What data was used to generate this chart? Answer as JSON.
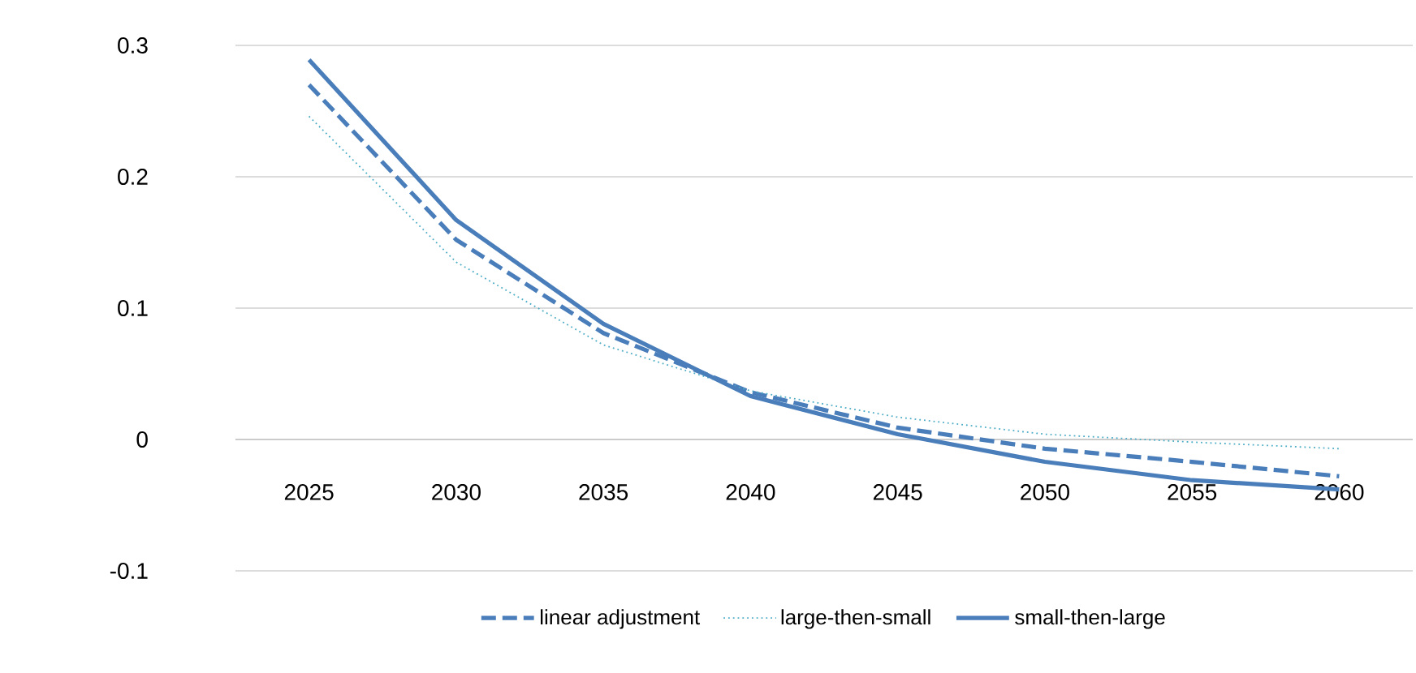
{
  "chart_data": {
    "type": "line",
    "categories": [
      "2025",
      "2030",
      "2035",
      "2040",
      "2045",
      "2050",
      "2055",
      "2060"
    ],
    "series": [
      {
        "name": "linear adjustment",
        "color": "#4a7ebb",
        "line_style": "dashed",
        "values": [
          0.27,
          0.152,
          0.081,
          0.036,
          0.009,
          -0.007,
          -0.017,
          -0.028
        ]
      },
      {
        "name": "large-then-small",
        "color": "#4bacc6",
        "line_style": "dotted",
        "values": [
          0.246,
          0.135,
          0.072,
          0.037,
          0.017,
          0.004,
          -0.002,
          -0.007
        ]
      },
      {
        "name": "small-then-large",
        "color": "#4a7ebb",
        "line_style": "solid",
        "values": [
          0.289,
          0.167,
          0.088,
          0.033,
          0.004,
          -0.017,
          -0.031,
          -0.038
        ]
      }
    ],
    "ylim": [
      -0.1,
      0.3
    ],
    "yticks": [
      -0.1,
      0,
      0.1,
      0.2,
      0.3
    ],
    "grid": "y",
    "legend": "bottom",
    "marker": "none"
  }
}
